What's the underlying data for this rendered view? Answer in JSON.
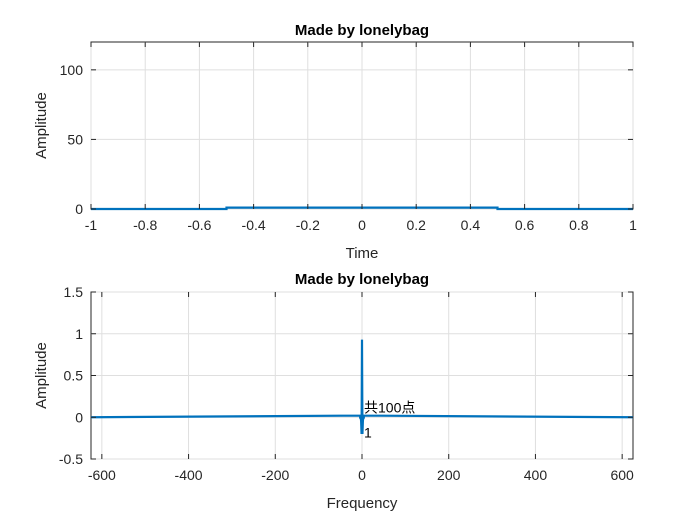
{
  "chart_data": [
    {
      "type": "line",
      "title": "Made by lonelybag",
      "xlabel": "Time",
      "ylabel": "Amplitude",
      "xlim": [
        -1,
        1
      ],
      "ylim": [
        0,
        120
      ],
      "xticks": [
        -1,
        -0.8,
        -0.6,
        -0.4,
        -0.2,
        0,
        0.2,
        0.4,
        0.6,
        0.8,
        1
      ],
      "xtick_labels": [
        "-1",
        "-0.8",
        "-0.6",
        "-0.4",
        "-0.2",
        "0",
        "0.2",
        "0.4",
        "0.6",
        "0.8",
        "1"
      ],
      "yticks": [
        0,
        50,
        100
      ],
      "ytick_labels": [
        "0",
        "50",
        "100"
      ],
      "grid": true,
      "color": "#0072BD",
      "x": [
        -1,
        -0.5,
        -0.5,
        0.5,
        0.5,
        1
      ],
      "y": [
        0,
        0,
        1,
        1,
        0,
        0
      ]
    },
    {
      "type": "line",
      "title": "Made by lonelybag",
      "xlabel": "Frequency",
      "ylabel": "Amplitude",
      "xlim": [
        -625,
        625
      ],
      "ylim": [
        -0.5,
        1.5
      ],
      "xticks": [
        -600,
        -400,
        -200,
        0,
        200,
        400,
        600
      ],
      "xtick_labels": [
        "-600",
        "-400",
        "-200",
        "0",
        "200",
        "400",
        "600"
      ],
      "yticks": [
        -0.5,
        0,
        0.5,
        1,
        1.5
      ],
      "ytick_labels": [
        "-0.5",
        "0",
        "0.5",
        "1",
        "1.5"
      ],
      "grid": true,
      "color": "#0072BD",
      "x": [
        -625,
        -3,
        -2,
        -1,
        0,
        1,
        2,
        3,
        625
      ],
      "y": [
        0,
        0.02,
        -0.05,
        -0.2,
        0.93,
        -0.2,
        -0.05,
        0.02,
        0
      ],
      "annotations": [
        {
          "text": "共100点",
          "x": 0,
          "y": 0,
          "anchor": "above-right"
        },
        {
          "text": "1",
          "x": 0,
          "y": 0,
          "anchor": "below-right"
        }
      ]
    }
  ]
}
